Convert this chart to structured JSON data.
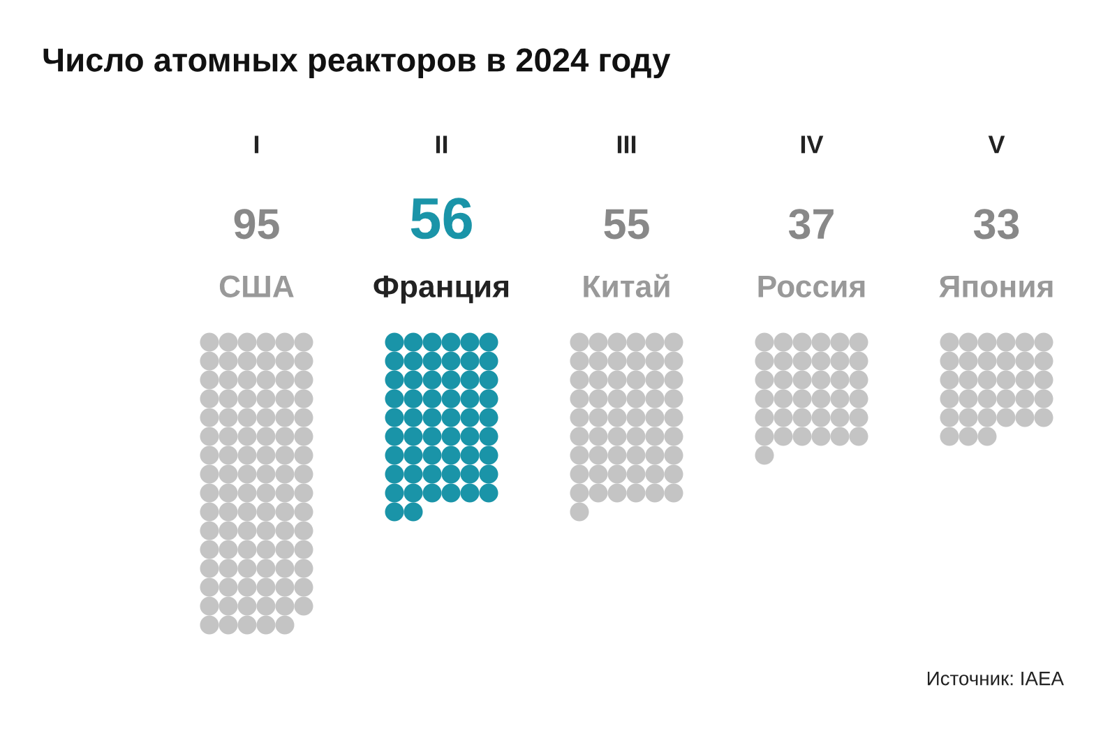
{
  "chart_data": {
    "type": "other",
    "title": "Число атомных реакторов в 2024 году",
    "categories": [
      "США",
      "Франция",
      "Китай",
      "Россия",
      "Япония"
    ],
    "values": [
      95,
      56,
      55,
      37,
      33
    ],
    "colors": [
      "#c4c4c4",
      "#1a94a8",
      "#c4c4c4",
      "#c4c4c4",
      "#c4c4c4"
    ],
    "data_labels": true,
    "annotations": [
      "I",
      "II",
      "III",
      "IV",
      "V",
      "Источник: IAEA"
    ]
  }
}
